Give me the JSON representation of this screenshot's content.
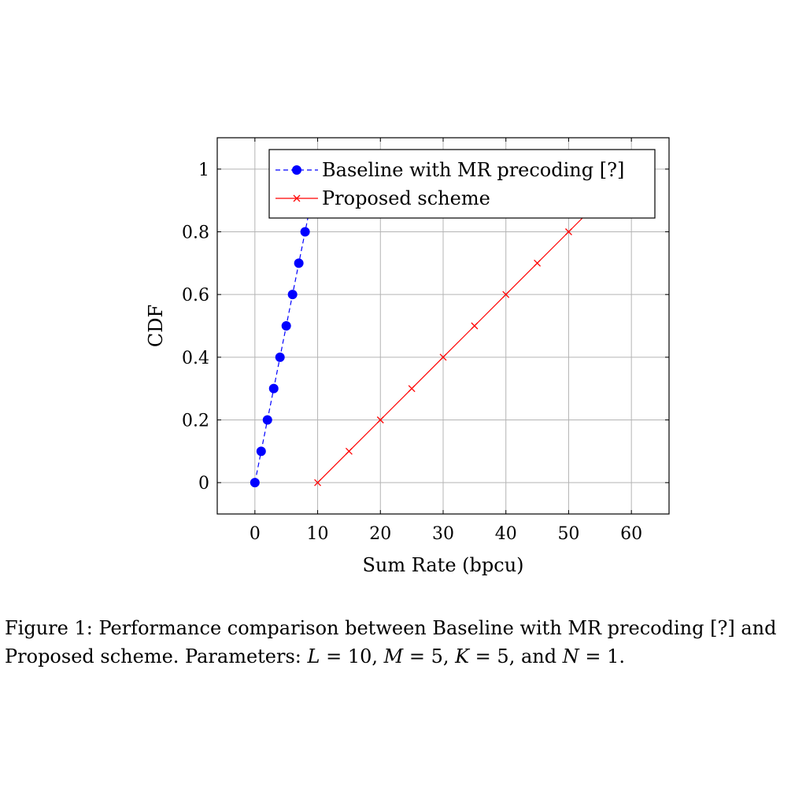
{
  "chart_data": {
    "type": "line",
    "xlabel": "Sum Rate (bpcu)",
    "ylabel": "CDF",
    "xlim": [
      -6,
      66
    ],
    "ylim": [
      -0.1,
      1.1
    ],
    "xticks": [
      0,
      10,
      20,
      30,
      40,
      50,
      60
    ],
    "yticks": [
      0,
      0.2,
      0.4,
      0.6,
      0.8,
      1
    ],
    "xtick_labels": [
      "0",
      "10",
      "20",
      "30",
      "40",
      "50",
      "60"
    ],
    "ytick_labels": [
      "0",
      "0.2",
      "0.4",
      "0.6",
      "0.8",
      "1"
    ],
    "grid": true,
    "legend_position": "top-right",
    "series": [
      {
        "name": "Baseline with MR precoding [?]",
        "color": "#0000ff",
        "line_style": "dashed",
        "marker": "filled-circle",
        "x": [
          0,
          1,
          2,
          3,
          4,
          5,
          6,
          7,
          8,
          9
        ],
        "y": [
          0,
          0.1,
          0.2,
          0.3,
          0.4,
          0.5,
          0.6,
          0.7,
          0.8,
          0.9
        ]
      },
      {
        "name": "Proposed scheme",
        "color": "#ff0000",
        "line_style": "solid",
        "marker": "cross",
        "x": [
          10,
          15,
          20,
          25,
          30,
          35,
          40,
          45,
          50,
          55
        ],
        "y": [
          0,
          0.1,
          0.2,
          0.3,
          0.4,
          0.5,
          0.6,
          0.7,
          0.8,
          0.9
        ]
      }
    ]
  },
  "caption": {
    "prefix": "Figure 1: Performance comparison between Baseline with MR precoding [?] and Proposed scheme. Parameters: ",
    "params": [
      {
        "symbol": "L",
        "value": "10"
      },
      {
        "symbol": "M",
        "value": "5"
      },
      {
        "symbol": "K",
        "value": "5"
      },
      {
        "symbol": "N",
        "value": "1"
      }
    ],
    "joiner": ", ",
    "last_joiner": ", and ",
    "suffix": "."
  }
}
